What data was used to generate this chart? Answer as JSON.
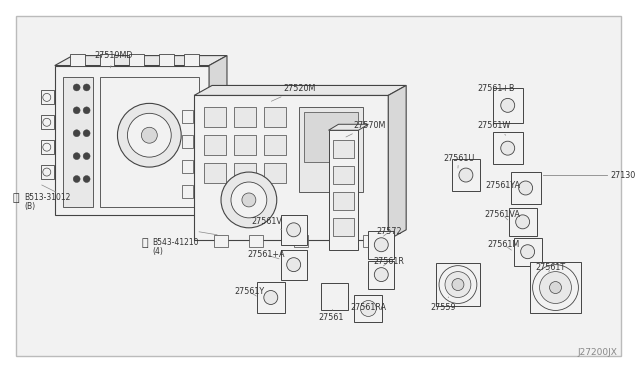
{
  "background_color": "#ffffff",
  "border_color": "#aaaaaa",
  "line_color": "#444444",
  "line_color_light": "#888888",
  "text_color": "#333333",
  "fill_light": "#f2f2f2",
  "fill_mid": "#e8e8e8",
  "fill_dark": "#d8d8d8",
  "diagram_id": "J27200JX",
  "font_size_labels": 5.8,
  "font_size_diagram_id": 6.5,
  "border": [
    0.025,
    0.04,
    0.975,
    0.96
  ]
}
